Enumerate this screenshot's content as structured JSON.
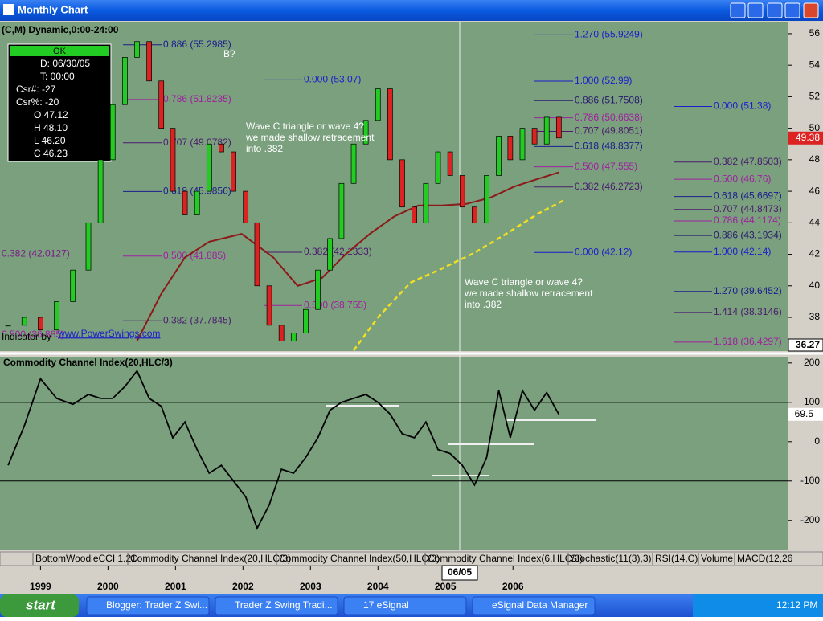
{
  "window": {
    "title": "Monthly Chart"
  },
  "chart_data": [
    {
      "type": "line",
      "title": "(C,M) Dynamic,0:00-24:00",
      "x": [
        1998.52,
        1998.76,
        1999.0,
        1999.24,
        1999.48,
        1999.71,
        1999.89,
        2000.07,
        2000.25,
        2000.43,
        2000.61,
        2000.79,
        2000.96,
        2001.14,
        2001.32,
        2001.5,
        2001.68,
        2001.86,
        2002.04,
        2002.21,
        2002.39,
        2002.57,
        2002.75,
        2002.93,
        2003.11,
        2003.29,
        2003.46,
        2003.64,
        2003.82,
        2004.0,
        2004.18,
        2004.36,
        2004.54,
        2004.71,
        2004.89,
        2005.07,
        2005.25,
        2005.43,
        2005.61,
        2005.79,
        2005.96,
        2006.14,
        2006.32,
        2006.5,
        2006.68
      ],
      "up_color": "#22cc22",
      "down_color": "#dd2222",
      "series": [
        {
          "color": "#000000",
          "values": [
            37.5,
            38,
            37.2,
            39,
            41,
            44,
            48,
            51.5,
            54.5,
            55.5,
            53,
            50,
            46,
            44.5,
            46,
            49,
            48.5,
            46,
            44,
            40,
            37.5,
            36.5,
            37,
            38.5,
            41,
            43,
            46.5,
            49,
            50.5,
            52.5,
            48,
            45,
            44,
            46.5,
            48.5,
            47,
            45,
            44,
            47,
            49.5,
            48,
            50,
            49,
            50.7,
            49.38
          ]
        },
        {
          "color": "#8b1a1a",
          "dash": false,
          "x": [
            2000.43,
            2000.79,
            2001.14,
            2001.5,
            2001.98,
            2002.45,
            2002.81,
            2003.17,
            2003.52,
            2003.88,
            2004.24,
            2004.6,
            2004.95,
            2005.31,
            2005.67,
            2006.02,
            2006.38,
            2006.68
          ],
          "values": [
            36.5,
            39.5,
            41.8,
            42.8,
            43.3,
            41.8,
            40,
            40.5,
            42,
            43.3,
            44.4,
            45.1,
            45.1,
            45.2,
            45.6,
            46.3,
            46.8,
            47.2
          ]
        },
        {
          "color": "#f0e020",
          "dash": true,
          "x": [
            2003.64,
            2004.0,
            2004.48,
            2004.95,
            2005.43,
            2005.9,
            2006.38,
            2006.74
          ],
          "values": [
            35.9,
            38,
            40.2,
            41.1,
            42.1,
            43.3,
            44.6,
            45.4
          ]
        }
      ],
      "xlim": [
        1998.4,
        2010.07
      ],
      "xticks": [
        1999,
        2000,
        2001,
        2002,
        2003,
        2004,
        2005,
        2006
      ],
      "ylim": [
        35.86,
        56.71
      ],
      "yticks": [
        38,
        40,
        42,
        44,
        46,
        48,
        50,
        52,
        54,
        56
      ],
      "last_label": 49.38,
      "cursor_price": 36.27,
      "cursor_date": "06/05",
      "levels": [
        {
          "value": 55.2985,
          "label": "0.886 (55.2985)",
          "color": "#1c1c8c"
        },
        {
          "value": 51.8235,
          "label": "0.786 (51.8235)",
          "color": "#a020a0"
        },
        {
          "value": 49.0782,
          "label": "0.707 (49.0782)",
          "color": "#4b1a6e"
        },
        {
          "value": 45.9856,
          "label": "0.618 (45.9856)",
          "color": "#1c1c8c"
        },
        {
          "value": 41.885,
          "label": "0.500 (41.885)",
          "color": "#a020a0"
        },
        {
          "value": 37.7845,
          "label": "0.382 (37.7845)",
          "color": "#4b1a6e"
        },
        {
          "value": 42.0127,
          "label": "0.382 (42.0127)",
          "color": "#7a1a8a"
        },
        {
          "value": 36.885,
          "label": "0.500 (36.885)",
          "color": "#a020a0"
        },
        {
          "value": 53.07,
          "label": "0.000 (53.07)",
          "color": "#1c1ccc"
        },
        {
          "value": 42.1333,
          "label": "0.382 (42.1333)",
          "color": "#4b1a6e"
        },
        {
          "value": 38.755,
          "label": "0.500 (38.755)",
          "color": "#a020a0"
        },
        {
          "value": 55.9249,
          "label": "1.270 (55.9249)",
          "color": "#1c1ccc"
        },
        {
          "value": 52.99,
          "label": "1.000 (52.99)",
          "color": "#1c1ccc"
        },
        {
          "value": 51.7508,
          "label": "0.886 (51.7508)",
          "color": "#2a1a6e"
        },
        {
          "value": 50.6638,
          "label": "0.786 (50.6638)",
          "color": "#a020a0"
        },
        {
          "value": 49.8051,
          "label": "0.707 (49.8051)",
          "color": "#4b1a6e"
        },
        {
          "value": 48.8377,
          "label": "0.618 (48.8377)",
          "color": "#1c1c8c"
        },
        {
          "value": 47.555,
          "label": "0.500 (47.555)",
          "color": "#a020a0"
        },
        {
          "value": 46.2723,
          "label": "0.382 (46.2723)",
          "color": "#4b1a6e"
        },
        {
          "value": 42.12,
          "label": "0.000 (42.12)",
          "color": "#1c1ccc"
        },
        {
          "value": 51.38,
          "label": "0.000 (51.38)",
          "color": "#1c1ccc"
        },
        {
          "value": 47.8503,
          "label": "0.382 (47.8503)",
          "color": "#4b1a6e"
        },
        {
          "value": 46.76,
          "label": "0.500 (46.76)",
          "color": "#a020a0"
        },
        {
          "value": 45.6697,
          "label": "0.618 (45.6697)",
          "color": "#1c1c8c"
        },
        {
          "value": 44.8473,
          "label": "0.707 (44.8473)",
          "color": "#4b1a6e"
        },
        {
          "value": 44.1174,
          "label": "0.786 (44.1174)",
          "color": "#a020a0"
        },
        {
          "value": 43.1934,
          "label": "0.886 (43.1934)",
          "color": "#2a1a6e"
        },
        {
          "value": 42.14,
          "label": "1.000 (42.14)",
          "color": "#1c1ccc"
        },
        {
          "value": 39.6452,
          "label": "1.270 (39.6452)",
          "color": "#1c1c8c"
        },
        {
          "value": 38.3146,
          "label": "1.414 (38.3146)",
          "color": "#4b1a6e"
        },
        {
          "value": 36.4297,
          "label": "1.618 (36.4297)",
          "color": "#a020a0"
        }
      ],
      "annotations": {
        "b": "B?",
        "wave_1": [
          "Wave C triangle or wave 4?",
          "we made shallow retracement",
          "into .382"
        ],
        "wave_2": [
          "Wave C triangle or wave 4?",
          "we made shallow retracement",
          "into .382"
        ],
        "credit": "Indicator by",
        "site": "www.PowerSwings.com"
      }
    },
    {
      "type": "line",
      "title": "Commodity Channel Index(20,HLC/3)",
      "x": [
        1998.52,
        1998.76,
        1999.0,
        1999.24,
        1999.48,
        1999.71,
        1999.89,
        2000.07,
        2000.25,
        2000.43,
        2000.61,
        2000.79,
        2000.96,
        2001.14,
        2001.32,
        2001.5,
        2001.68,
        2001.86,
        2002.04,
        2002.21,
        2002.39,
        2002.57,
        2002.75,
        2002.93,
        2003.11,
        2003.29,
        2003.46,
        2003.64,
        2003.82,
        2004.0,
        2004.18,
        2004.36,
        2004.54,
        2004.71,
        2004.89,
        2005.07,
        2005.25,
        2005.43,
        2005.61,
        2005.79,
        2005.96,
        2006.14,
        2006.32,
        2006.5,
        2006.68
      ],
      "series": [
        {
          "color": "#000000",
          "values": [
            -60,
            40,
            160,
            110,
            95,
            120,
            110,
            110,
            140,
            180,
            110,
            90,
            10,
            50,
            -20,
            -80,
            -60,
            -100,
            -140,
            -220,
            -160,
            -70,
            -80,
            -40,
            10,
            80,
            100,
            110,
            120,
            100,
            70,
            20,
            10,
            50,
            -20,
            -30,
            -60,
            -110,
            -40,
            130,
            10,
            130,
            80,
            125,
            69.5
          ]
        }
      ],
      "ylim": [
        -276,
        216
      ],
      "yticks": [
        200,
        100,
        0,
        -100,
        -200
      ],
      "hlines": [
        100,
        -100
      ],
      "last_label": 69.5
    }
  ],
  "data_window": {
    "status": "OK",
    "rows": [
      "D: 06/30/05",
      "T: 00:00",
      "Csr#: -27",
      "Csr%: -20",
      "O 47.12",
      "H 48.10",
      "L 46.20",
      "C 46.23"
    ]
  },
  "tabs": [
    "BottomWoodieCCI 1.21",
    "Commodity Channel Index(20,HLC/3)",
    "Commodity Channel Index(50,HLC/3)",
    "Commodity Channel Index(6,HLC/3)",
    "Stochastic(11(3),3)",
    "RSI(14,C)",
    "Volume",
    "MACD(12,26"
  ],
  "taskbar": {
    "start": "start",
    "items": [
      "Blogger: Trader Z Swi...",
      "Trader Z Swing Tradi...",
      "17 eSignal",
      "eSignal Data Manager"
    ],
    "clock": "12:12 PM"
  }
}
